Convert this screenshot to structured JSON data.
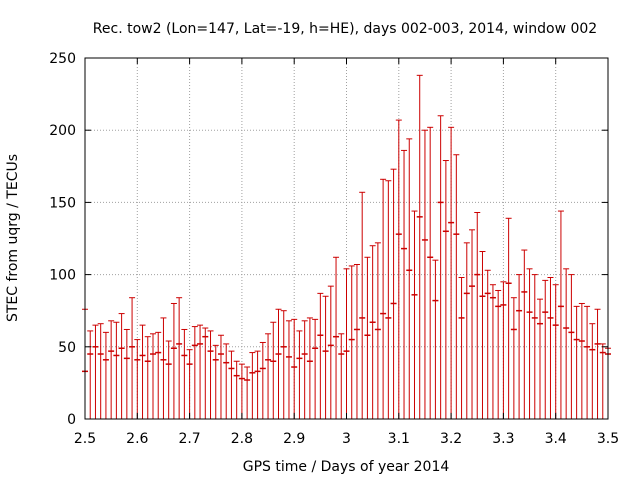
{
  "chart_data": {
    "type": "scatter",
    "title": "Rec. tow2 (Lon=147, Lat=-19, h=HE), days 002-003, 2014, window 002",
    "xlabel": "GPS time / Days of year 2014",
    "ylabel": "STEC from uqrg / TECUs",
    "xlim": [
      2.5,
      3.5
    ],
    "ylim": [
      0,
      250
    ],
    "x_ticks": [
      "2.5",
      "2.6",
      "2.7",
      "2.8",
      "2.9",
      "3",
      "3.1",
      "3.2",
      "3.3",
      "3.4",
      "3.5"
    ],
    "y_ticks": [
      "0",
      "50",
      "100",
      "150",
      "200",
      "250"
    ],
    "grid": true,
    "series_color": "#cc0000",
    "grid_color": "#a0a0a0",
    "error_bar_lower": 0,
    "series": [
      {
        "name": "STEC",
        "points": [
          [
            2.5,
            76,
            33
          ],
          [
            2.51,
            61,
            45
          ],
          [
            2.52,
            65,
            50
          ],
          [
            2.53,
            66,
            45
          ],
          [
            2.54,
            60,
            41
          ],
          [
            2.55,
            68,
            47
          ],
          [
            2.56,
            67,
            44
          ],
          [
            2.57,
            73,
            49
          ],
          [
            2.58,
            62,
            42
          ],
          [
            2.59,
            84,
            50
          ],
          [
            2.6,
            55,
            41
          ],
          [
            2.61,
            65,
            44
          ],
          [
            2.62,
            57,
            40
          ],
          [
            2.63,
            59,
            45
          ],
          [
            2.64,
            60,
            46
          ],
          [
            2.65,
            70,
            41
          ],
          [
            2.66,
            54,
            38
          ],
          [
            2.67,
            80,
            49
          ],
          [
            2.68,
            84,
            52
          ],
          [
            2.69,
            62,
            44
          ],
          [
            2.7,
            48,
            38
          ],
          [
            2.71,
            64,
            51
          ],
          [
            2.72,
            65,
            52
          ],
          [
            2.73,
            63,
            57
          ],
          [
            2.74,
            61,
            47
          ],
          [
            2.75,
            51,
            41
          ],
          [
            2.76,
            58,
            45
          ],
          [
            2.77,
            52,
            39
          ],
          [
            2.78,
            47,
            35
          ],
          [
            2.79,
            40,
            30
          ],
          [
            2.8,
            38,
            28
          ],
          [
            2.81,
            36,
            27
          ],
          [
            2.82,
            46,
            32
          ],
          [
            2.83,
            47,
            33
          ],
          [
            2.84,
            53,
            35
          ],
          [
            2.85,
            59,
            41
          ],
          [
            2.86,
            67,
            40
          ],
          [
            2.87,
            76,
            45
          ],
          [
            2.88,
            75,
            50
          ],
          [
            2.89,
            68,
            43
          ],
          [
            2.9,
            69,
            36
          ],
          [
            2.91,
            61,
            42
          ],
          [
            2.92,
            68,
            45
          ],
          [
            2.93,
            70,
            40
          ],
          [
            2.94,
            69,
            49
          ],
          [
            2.95,
            87,
            58
          ],
          [
            2.96,
            85,
            47
          ],
          [
            2.97,
            92,
            51
          ],
          [
            2.98,
            112,
            57
          ],
          [
            2.99,
            59,
            45
          ],
          [
            3.0,
            104,
            47
          ],
          [
            3.01,
            106,
            55
          ],
          [
            3.02,
            107,
            62
          ],
          [
            3.03,
            157,
            70
          ],
          [
            3.04,
            112,
            58
          ],
          [
            3.05,
            120,
            67
          ],
          [
            3.06,
            122,
            62
          ],
          [
            3.07,
            166,
            73
          ],
          [
            3.08,
            165,
            70
          ],
          [
            3.09,
            173,
            80
          ],
          [
            3.1,
            207,
            128
          ],
          [
            3.11,
            186,
            118
          ],
          [
            3.12,
            194,
            103
          ],
          [
            3.13,
            144,
            86
          ],
          [
            3.14,
            238,
            140
          ],
          [
            3.15,
            200,
            124
          ],
          [
            3.16,
            202,
            112
          ],
          [
            3.17,
            110,
            82
          ],
          [
            3.18,
            210,
            150
          ],
          [
            3.19,
            179,
            130
          ],
          [
            3.2,
            202,
            136
          ],
          [
            3.21,
            183,
            128
          ],
          [
            3.22,
            98,
            70
          ],
          [
            3.23,
            122,
            87
          ],
          [
            3.24,
            131,
            92
          ],
          [
            3.25,
            143,
            100
          ],
          [
            3.26,
            116,
            85
          ],
          [
            3.27,
            103,
            87
          ],
          [
            3.28,
            93,
            84
          ],
          [
            3.29,
            89,
            78
          ],
          [
            3.3,
            95,
            79
          ],
          [
            3.31,
            139,
            94
          ],
          [
            3.32,
            84,
            62
          ],
          [
            3.33,
            100,
            75
          ],
          [
            3.34,
            117,
            88
          ],
          [
            3.35,
            104,
            74
          ],
          [
            3.36,
            100,
            70
          ],
          [
            3.37,
            83,
            66
          ],
          [
            3.38,
            96,
            74
          ],
          [
            3.39,
            98,
            70
          ],
          [
            3.4,
            93,
            65
          ],
          [
            3.41,
            144,
            78
          ],
          [
            3.42,
            104,
            63
          ],
          [
            3.43,
            100,
            60
          ],
          [
            3.44,
            78,
            55
          ],
          [
            3.45,
            80,
            54
          ],
          [
            3.46,
            78,
            50
          ],
          [
            3.47,
            66,
            48
          ],
          [
            3.48,
            76,
            52
          ],
          [
            3.49,
            52,
            46
          ],
          [
            3.5,
            49,
            45
          ]
        ]
      }
    ]
  }
}
